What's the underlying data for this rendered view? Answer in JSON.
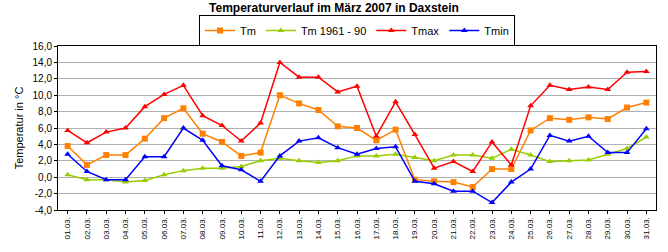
{
  "chart_data": {
    "type": "line",
    "title": "Temperaturverlauf im März 2007 in Daxstein",
    "y_label": "Temperatur in °C",
    "categories": [
      "01.03.",
      "02.03.",
      "03.03.",
      "04.03.",
      "05.03.",
      "06.03.",
      "07.03.",
      "08.03.",
      "09.03.",
      "10.03.",
      "11.03.",
      "12.03.",
      "13.03.",
      "14.03.",
      "15.03.",
      "16.03.",
      "17.03.",
      "18.03.",
      "19.03.",
      "20.03.",
      "21.03.",
      "22.03.",
      "23.03.",
      "24.03.",
      "25.03.",
      "26.03.",
      "27.03.",
      "28.03.",
      "29.03.",
      "30.03.",
      "31.03."
    ],
    "series": [
      {
        "name": "Tm",
        "color": "#ff8000",
        "marker": "square",
        "values": [
          3.8,
          1.5,
          2.7,
          2.7,
          4.7,
          7.2,
          8.4,
          5.3,
          4.3,
          2.6,
          3.0,
          10.0,
          9.0,
          8.2,
          6.2,
          6.0,
          4.5,
          5.8,
          -0.3,
          -0.5,
          -0.6,
          -1.2,
          1.0,
          1.0,
          5.7,
          7.2,
          7.0,
          7.3,
          7.1,
          8.5,
          9.1
        ]
      },
      {
        "name": "Tm 1961 - 90",
        "color": "#99cc00",
        "marker": "triangle-up",
        "values": [
          0.3,
          -0.3,
          -0.3,
          -0.6,
          -0.4,
          0.3,
          0.8,
          1.1,
          1.1,
          1.3,
          2.0,
          2.3,
          2.0,
          1.8,
          2.0,
          2.6,
          2.6,
          2.8,
          2.4,
          2.0,
          2.7,
          2.7,
          2.3,
          3.4,
          2.7,
          1.9,
          2.0,
          2.1,
          2.8,
          3.5,
          4.9
        ]
      },
      {
        "name": "Tmax",
        "color": "#ff0000",
        "marker": "triangle-up",
        "values": [
          5.7,
          4.2,
          5.5,
          6.0,
          8.6,
          10.1,
          11.2,
          7.5,
          6.3,
          4.4,
          6.6,
          14.0,
          12.2,
          12.2,
          10.4,
          11.1,
          5.0,
          9.2,
          5.2,
          1.1,
          1.9,
          0.7,
          4.3,
          1.5,
          8.7,
          11.2,
          10.7,
          11.0,
          10.7,
          12.8,
          12.9
        ]
      },
      {
        "name": "Tmin",
        "color": "#0000ff",
        "marker": "triangle-up",
        "values": [
          2.8,
          0.7,
          -0.3,
          -0.3,
          2.5,
          2.5,
          6.0,
          4.5,
          1.4,
          0.9,
          -0.5,
          2.6,
          4.4,
          4.8,
          3.6,
          2.8,
          3.5,
          3.7,
          -0.5,
          -0.8,
          -1.7,
          -1.7,
          -3.1,
          -0.6,
          1.0,
          5.1,
          4.4,
          5.0,
          3.0,
          3.0,
          5.9
        ]
      }
    ],
    "ylim": [
      -4,
      16
    ],
    "yticks": [
      {
        "value": -4,
        "label": "-4,0"
      },
      {
        "value": -2,
        "label": "-2,0"
      },
      {
        "value": 0,
        "label": "0,0"
      },
      {
        "value": 2,
        "label": "2,0"
      },
      {
        "value": 4,
        "label": "4,0"
      },
      {
        "value": 6,
        "label": "6,0"
      },
      {
        "value": 8,
        "label": "8,0"
      },
      {
        "value": 10,
        "label": "10,0"
      },
      {
        "value": 12,
        "label": "12,0"
      },
      {
        "value": 14,
        "label": "14,0"
      },
      {
        "value": 16,
        "label": "16,0"
      }
    ],
    "grid": true,
    "legend": "top"
  }
}
